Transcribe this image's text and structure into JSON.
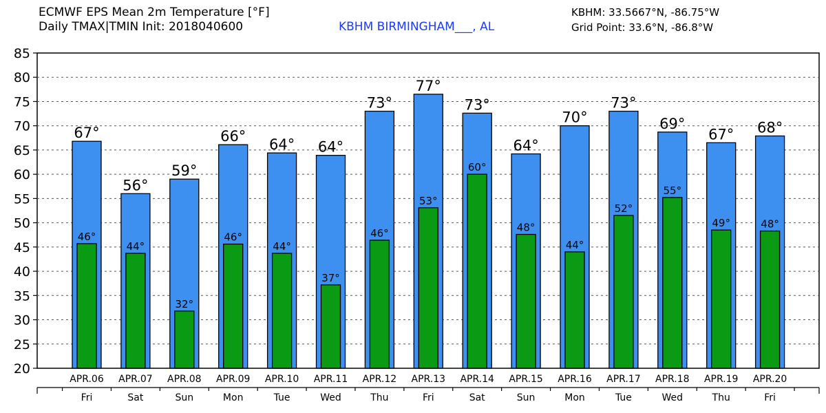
{
  "header": {
    "title": "ECMWF EPS Mean 2m Temperature [°F]",
    "subtitle": "Daily TMAX|TMIN Init: 2018040600",
    "station": "KBHM BIRMINGHAM___, AL",
    "station_coords": "KBHM: 33.5667°N, -86.75°W",
    "grid_point": "Grid Point: 33.6°N, -86.8°W"
  },
  "colors": {
    "tmax": "#3d8ff0",
    "tmin": "#0b9a14",
    "grid": "#555555",
    "axis": "#000000"
  },
  "chart_data": {
    "type": "bar",
    "title": "ECMWF EPS Mean 2m Temperature [°F]",
    "xlabel": "",
    "ylabel": "",
    "ylim": [
      20,
      85
    ],
    "yticks": [
      20,
      25,
      30,
      35,
      40,
      45,
      50,
      55,
      60,
      65,
      70,
      75,
      80,
      85
    ],
    "grid": true,
    "categories": [
      "APR.06",
      "APR.07",
      "APR.08",
      "APR.09",
      "APR.10",
      "APR.11",
      "APR.12",
      "APR.13",
      "APR.14",
      "APR.15",
      "APR.16",
      "APR.17",
      "APR.18",
      "APR.19",
      "APR.20"
    ],
    "weekdays": [
      "Fri",
      "Sat",
      "Sun",
      "Mon",
      "Tue",
      "Wed",
      "Thu",
      "Fri",
      "Sat",
      "Sun",
      "Mon",
      "Tue",
      "Wed",
      "Thu",
      "Fri"
    ],
    "series": [
      {
        "name": "TMAX",
        "values": [
          66.8,
          56.0,
          59.0,
          66.1,
          64.4,
          63.9,
          73.0,
          76.5,
          72.6,
          64.2,
          70.0,
          73.0,
          68.7,
          66.5,
          67.9
        ],
        "labels": [
          "67°",
          "56°",
          "59°",
          "66°",
          "64°",
          "64°",
          "73°",
          "77°",
          "73°",
          "64°",
          "70°",
          "73°",
          "69°",
          "67°",
          "68°"
        ]
      },
      {
        "name": "TMIN",
        "values": [
          45.7,
          43.7,
          31.8,
          45.6,
          43.7,
          37.2,
          46.4,
          53.1,
          60.0,
          47.6,
          44.0,
          51.5,
          55.2,
          48.5,
          48.3
        ],
        "labels": [
          "46°",
          "44°",
          "32°",
          "46°",
          "44°",
          "37°",
          "46°",
          "53°",
          "60°",
          "48°",
          "44°",
          "52°",
          "55°",
          "49°",
          "48°"
        ]
      }
    ]
  }
}
